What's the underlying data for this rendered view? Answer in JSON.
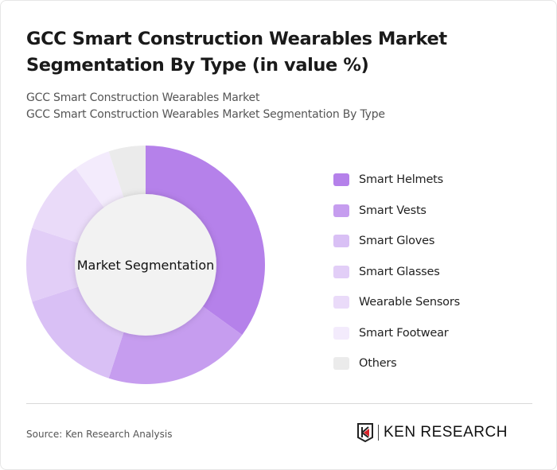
{
  "header": {
    "title": "GCC Smart Construction Wearables Market Segmentation By Type (in value %)",
    "subtitle1": "GCC Smart Construction Wearables Market",
    "subtitle2": "GCC Smart Construction Wearables Market Segmentation By Type"
  },
  "chart_data": {
    "type": "pie",
    "donut": true,
    "center_label": "Market Segmentation",
    "legend_position": "right",
    "categories": [
      "Smart Helmets",
      "Smart Vests",
      "Smart Gloves",
      "Smart Glasses",
      "Wearable Sensors",
      "Smart Footwear",
      "Others"
    ],
    "values": [
      35,
      20,
      15,
      10,
      10,
      5,
      5
    ],
    "colors": [
      "#b581ea",
      "#c69def",
      "#d9c0f5",
      "#e2cef7",
      "#eadbf9",
      "#f3ebfc",
      "#ebebeb"
    ]
  },
  "footer": {
    "source": "Source: Ken Research Analysis",
    "logo_text": "KEN RESEARCH"
  }
}
